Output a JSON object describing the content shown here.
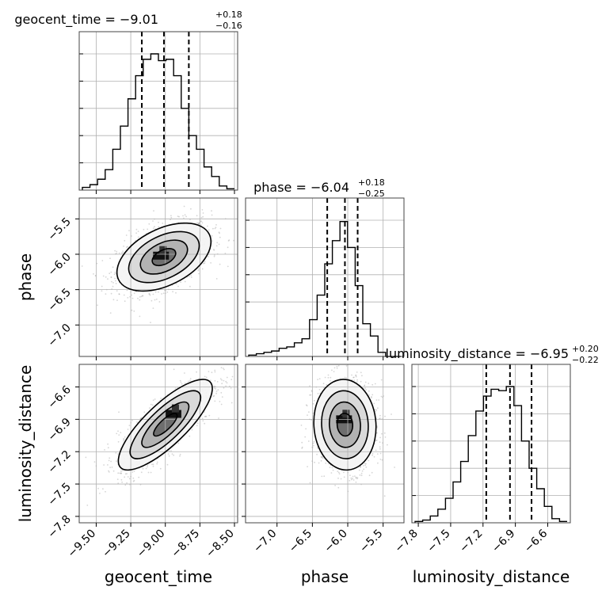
{
  "chart_data": {
    "type": "corner",
    "parameters": [
      {
        "name": "geocent_time",
        "axis_label": "geocent_time",
        "title_main": "geocent_time = −9.01",
        "title_sup": "+0.18",
        "title_sub": "−0.16",
        "median": -9.01,
        "q_low": -9.17,
        "q_high": -8.83,
        "range": [
          -9.6,
          -8.5
        ],
        "ticks": [
          -9.5,
          -9.25,
          -9.0,
          -8.75,
          -8.5
        ],
        "tick_labels": [
          "−9.50",
          "−9.25",
          "−9.00",
          "−8.75",
          "−8.50"
        ],
        "hist_edges": [
          -9.6,
          -9.545,
          -9.49,
          -9.435,
          -9.38,
          -9.325,
          -9.27,
          -9.215,
          -9.16,
          -9.105,
          -9.05,
          -8.995,
          -8.94,
          -8.885,
          -8.83,
          -8.775,
          -8.72,
          -8.665,
          -8.61,
          -8.555,
          -8.5
        ],
        "hist_counts": [
          0.02,
          0.04,
          0.08,
          0.15,
          0.3,
          0.47,
          0.67,
          0.84,
          0.96,
          1.0,
          0.95,
          0.96,
          0.84,
          0.6,
          0.4,
          0.3,
          0.17,
          0.1,
          0.03,
          0.01
        ]
      },
      {
        "name": "phase",
        "axis_label": "phase",
        "title_main": "phase = −6.04",
        "title_sup": "+0.18",
        "title_sub": "−0.25",
        "median": -6.04,
        "q_low": -6.29,
        "q_high": -5.86,
        "range": [
          -7.4,
          -5.25
        ],
        "ticks": [
          -7.0,
          -6.5,
          -6.0,
          -5.5
        ],
        "tick_labels": [
          "−7.0",
          "−6.5",
          "−6.0",
          "−5.5"
        ],
        "hist_edges": [
          -7.4,
          -7.2925,
          -7.185,
          -7.0775,
          -6.97,
          -6.8625,
          -6.755,
          -6.6475,
          -6.54,
          -6.4325,
          -6.325,
          -6.2175,
          -6.11,
          -6.0025,
          -5.895,
          -5.7875,
          -5.68,
          -5.5725,
          -5.465,
          -5.3575,
          -5.25
        ],
        "hist_counts": [
          0.01,
          0.02,
          0.03,
          0.04,
          0.06,
          0.07,
          0.1,
          0.13,
          0.27,
          0.45,
          0.68,
          0.85,
          0.99,
          0.8,
          0.52,
          0.24,
          0.15,
          0.03,
          0.0,
          0.0
        ]
      },
      {
        "name": "luminosity_distance",
        "axis_label": "luminosity_distance",
        "title_main": "luminosity_distance = −6.95",
        "title_sup": "+0.20",
        "title_sub": "−0.22",
        "median": -6.95,
        "q_low": -7.17,
        "q_high": -6.75,
        "range": [
          -7.83,
          -6.42
        ],
        "ticks": [
          -7.8,
          -7.5,
          -7.2,
          -6.9,
          -6.6
        ],
        "tick_labels": [
          "−7.8",
          "−7.5",
          "−7.2",
          "−6.9",
          "−6.6"
        ],
        "hist_edges": [
          -7.83,
          -7.7595,
          -7.689,
          -7.6185,
          -7.548,
          -7.4775,
          -7.407,
          -7.3365,
          -7.266,
          -7.1955,
          -7.125,
          -7.0545,
          -6.984,
          -6.9135,
          -6.843,
          -6.7725,
          -6.702,
          -6.6315,
          -6.561,
          -6.4905,
          -6.42
        ],
        "hist_counts": [
          0.01,
          0.02,
          0.05,
          0.1,
          0.18,
          0.3,
          0.45,
          0.64,
          0.82,
          0.93,
          0.98,
          0.97,
          1.0,
          0.86,
          0.6,
          0.4,
          0.25,
          0.12,
          0.03,
          0.01
        ]
      }
    ],
    "pairs": [
      {
        "x_param": "geocent_time",
        "y_param": "phase",
        "mean": [
          -9.01,
          -6.04
        ],
        "sd": [
          0.17,
          0.24
        ],
        "corr": 0.45,
        "peak": [
          -9.02,
          -6.02
        ],
        "levels_sigma": [
          0.5,
          1.0,
          1.5,
          2.0
        ]
      },
      {
        "x_param": "geocent_time",
        "y_param": "luminosity_distance",
        "mean": [
          -9.0,
          -6.95
        ],
        "sd": [
          0.17,
          0.21
        ],
        "corr": 0.8,
        "peak": [
          -8.93,
          -6.85
        ],
        "levels_sigma": [
          0.5,
          1.0,
          1.5,
          2.0
        ]
      },
      {
        "x_param": "phase",
        "y_param": "luminosity_distance",
        "mean": [
          -6.04,
          -6.95
        ],
        "sd": [
          0.22,
          0.21
        ],
        "corr": -0.05,
        "peak": [
          -6.03,
          -6.9
        ],
        "levels_sigma": [
          0.5,
          1.0,
          1.5,
          2.0
        ]
      }
    ],
    "grid": true,
    "line_color": "#000000",
    "grid_color": "#b0b0b0",
    "sample_color": "#8a8a8a"
  }
}
